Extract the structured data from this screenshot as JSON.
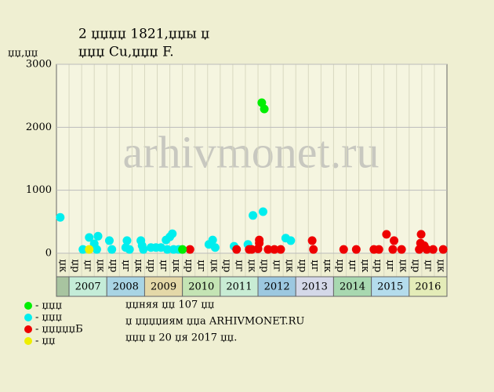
{
  "chart_data": {
    "type": "scatter",
    "title": "2 џџџџ 1821,џџы џ",
    "subtitle": "џџџ Cu,џџџ F.",
    "y_label": "џџ,џџ",
    "watermark": "arhivmonet.ru",
    "xlim": [
      0,
      31
    ],
    "ylim": [
      0,
      3000
    ],
    "yticks": [
      0,
      1000,
      2000,
      3000
    ],
    "grid": true,
    "columns": [
      "џк",
      "џр",
      "џг",
      "џк",
      "џр",
      "џг",
      "џк",
      "џр",
      "џг",
      "џк",
      "џр",
      "џг",
      "џк",
      "џр",
      "џг",
      "џк",
      "џр",
      "џг",
      "џк",
      "џр",
      "џг",
      "џк",
      "џр",
      "џг",
      "џк",
      "џр",
      "џг",
      "џк",
      "џр",
      "џг",
      "џк"
    ],
    "years": [
      {
        "label": "2007",
        "color": "#c4ecd8"
      },
      {
        "label": "2008",
        "color": "#a8d4e4"
      },
      {
        "label": "2009",
        "color": "#e4d8a8"
      },
      {
        "label": "2010",
        "color": "#c4e4b4"
      },
      {
        "label": "2011",
        "color": "#c8ecd4"
      },
      {
        "label": "2012",
        "color": "#9cc8e0"
      },
      {
        "label": "2013",
        "color": "#d4d8e8"
      },
      {
        "label": "2014",
        "color": "#a8d8b0"
      },
      {
        "label": "2015",
        "color": "#b4dcec"
      },
      {
        "label": "2016",
        "color": "#e4ecb8"
      }
    ],
    "series": [
      {
        "name": "- џџџ",
        "color": "#00ee00",
        "x": [
          10.0,
          16.3,
          16.5
        ],
        "values": [
          60,
          2390,
          2290
        ]
      },
      {
        "name": "- џџџ",
        "color": "#00eeee",
        "x": [
          0.3,
          2.1,
          2.6,
          3.0,
          3.3,
          3.2,
          4.2,
          4.4,
          5.6,
          5.5,
          5.8,
          6.7,
          6.8,
          6.9,
          7.5,
          7.9,
          8.3,
          8.7,
          9.0,
          9.2,
          8.8,
          9.3,
          9.7,
          12.1,
          12.4,
          12.6,
          14.1,
          15.2,
          15.6,
          16.4,
          18.2,
          18.6
        ],
        "values": [
          570,
          60,
          250,
          150,
          270,
          60,
          200,
          60,
          200,
          90,
          60,
          200,
          120,
          60,
          90,
          90,
          90,
          210,
          260,
          310,
          60,
          60,
          60,
          140,
          210,
          90,
          110,
          140,
          600,
          660,
          240,
          200
        ]
      },
      {
        "name": "- џџџџџБ",
        "color": "#ee0000",
        "x": [
          10.6,
          14.3,
          15.3,
          15.5,
          16.1,
          16.1,
          16.0,
          16.8,
          17.3,
          17.8,
          20.3,
          20.4,
          22.8,
          23.8,
          25.2,
          25.6,
          26.2,
          26.8,
          26.7,
          27.4,
          28.95,
          28.9,
          29.2,
          28.8,
          29.4,
          29.9,
          30.7
        ],
        "values": [
          60,
          60,
          60,
          60,
          210,
          160,
          70,
          60,
          60,
          60,
          200,
          60,
          60,
          60,
          60,
          60,
          300,
          200,
          60,
          60,
          300,
          160,
          120,
          60,
          60,
          60,
          60
        ]
      },
      {
        "name": "- џџ",
        "color": "#eeee00",
        "x": [
          2.6
        ],
        "values": [
          60
        ]
      }
    ],
    "notes": [
      "џџняя џџ 107 џџ",
      "џ џџџџиям џџа ARHIVMONET.RU",
      "џџџ џ 20 џя 2017 џџ."
    ]
  }
}
